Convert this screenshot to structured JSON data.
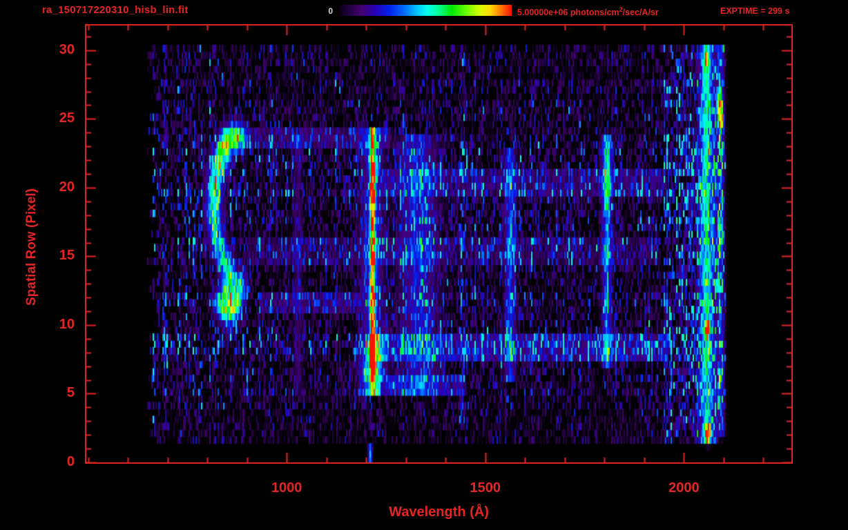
{
  "header": {
    "filename": "ra_150717220310_hisb_lin.fit",
    "exptime_label": "EXPTIME = 299 s",
    "colorbar": {
      "min_label": "0",
      "max_label_prefix": "5.00000e+06 photons/cm",
      "max_label_sup": "2",
      "max_label_suffix": "/sec/A/sr"
    }
  },
  "colors": {
    "axis_text": "#e62424",
    "colorbar_zero_label": "#d9d9d9",
    "background": "#000000"
  },
  "chart_data": {
    "type": "heatmap",
    "title": "",
    "xlabel": "Wavelength (Å)",
    "ylabel": "Spatial Row (Pixel)",
    "x_range": [
      492,
      2274
    ],
    "y_range": [
      -0.1,
      31.9
    ],
    "x_ticks": [
      {
        "value": 1000,
        "label": "1000"
      },
      {
        "value": 1500,
        "label": "1500"
      },
      {
        "value": 2000,
        "label": "2000"
      }
    ],
    "x_minor_step": 100,
    "y_ticks": [
      {
        "value": 0,
        "label": "0"
      },
      {
        "value": 5,
        "label": "5"
      },
      {
        "value": 10,
        "label": "10"
      },
      {
        "value": 15,
        "label": "15"
      },
      {
        "value": 20,
        "label": "20"
      },
      {
        "value": 25,
        "label": "25"
      },
      {
        "value": 30,
        "label": "30"
      }
    ],
    "y_minor_step": 1,
    "colorbar_range": [
      0,
      5000000
    ],
    "colorbar_units": "photons/cm2/sec/A/sr",
    "data_extent": {
      "wl": [
        648,
        2106
      ],
      "rows": [
        1.4,
        30.5
      ],
      "left_edge_jitter": 32,
      "right_edge_jitter": 6
    },
    "colormap": {
      "name": "rainbow",
      "stops": [
        [
          0.0,
          "#000000"
        ],
        [
          0.06,
          "#1c0038"
        ],
        [
          0.14,
          "#44006e"
        ],
        [
          0.22,
          "#2a00b4"
        ],
        [
          0.3,
          "#0022ee"
        ],
        [
          0.38,
          "#0066ff"
        ],
        [
          0.46,
          "#00c3ff"
        ],
        [
          0.52,
          "#00ffee"
        ],
        [
          0.58,
          "#00ff99"
        ],
        [
          0.66,
          "#00e800"
        ],
        [
          0.74,
          "#66ff00"
        ],
        [
          0.82,
          "#d8ff00"
        ],
        [
          0.88,
          "#ffd800"
        ],
        [
          0.93,
          "#ff8800"
        ],
        [
          1.0,
          "#ff1100"
        ]
      ]
    },
    "background_noise": {
      "amp": 0.3,
      "dropout": 0.2,
      "dropout_factor": 0.08,
      "spark_prob": 0.05,
      "spark_amp": 0.2,
      "cap": 0.55
    },
    "noise_zones": [
      {
        "wl": [
          1950,
          2044
        ],
        "gain": 1.8,
        "speckle_prob": 0.3,
        "speckle_amp": 0.16
      },
      {
        "wl": [
          2070,
          2106
        ],
        "gain": 1.6,
        "speckle_prob": 0.25,
        "speckle_amp": 0.14
      }
    ],
    "row_gain": [
      [
        1.4,
        4,
        0.55
      ],
      [
        4,
        5,
        0.8
      ],
      [
        5,
        7.5,
        1.0
      ],
      [
        7.5,
        9.5,
        1.4
      ],
      [
        9.5,
        14.5,
        1.0
      ],
      [
        14.5,
        16.5,
        1.2
      ],
      [
        16.5,
        19.5,
        1.0
      ],
      [
        19.5,
        21.5,
        1.3
      ],
      [
        21.5,
        24.5,
        1.0
      ],
      [
        24.5,
        26.5,
        0.8
      ],
      [
        26.5,
        30.5,
        0.68
      ]
    ],
    "row_streaks": [
      {
        "rows": [
          7.5,
          9.5
        ],
        "wl": [
          1230,
          1960
        ],
        "amp": 0.15
      },
      {
        "rows": [
          19.5,
          21.2
        ],
        "wl": [
          1240,
          1950
        ],
        "amp": 0.1
      },
      {
        "rows": [
          14.5,
          16.5
        ],
        "wl": [
          900,
          1940
        ],
        "amp": 0.07
      },
      {
        "rows": [
          10.8,
          12.2
        ],
        "wl": [
          930,
          1190
        ],
        "amp": 0.1
      },
      {
        "rows": [
          23.0,
          24.2
        ],
        "wl": [
          830,
          1260
        ],
        "amp": 0.1
      },
      {
        "rows": [
          5.0,
          6.5
        ],
        "wl": [
          1180,
          1450
        ],
        "amp": 0.14
      }
    ],
    "features": [
      {
        "name": "lyman-alpha-core",
        "type": "vline",
        "center": 1216,
        "sigma": 5,
        "profile": [
          [
            5,
            6,
            0.5
          ],
          [
            6,
            9.5,
            0.97
          ],
          [
            9.5,
            13,
            0.8
          ],
          [
            13,
            19,
            0.73
          ],
          [
            19,
            22.5,
            0.92
          ],
          [
            22.5,
            24.3,
            0.6
          ]
        ]
      },
      {
        "name": "lyman-alpha-wings",
        "type": "vline",
        "center": 1216,
        "sigma": 19,
        "profile": [
          [
            5,
            24.3,
            0.22
          ],
          [
            6.5,
            9.5,
            0.3
          ]
        ]
      },
      {
        "name": "lyman-beta-line",
        "type": "vline",
        "center": 1028,
        "sigma": 8,
        "profile": [
          [
            5,
            24,
            0.1
          ]
        ]
      },
      {
        "name": "emission-band-1330",
        "type": "vline",
        "center": 1332,
        "sigma": 32,
        "profile": [
          [
            5,
            24,
            0.2
          ]
        ]
      },
      {
        "name": "emission-line-1560",
        "type": "vline",
        "center": 1562,
        "sigma": 9,
        "profile": [
          [
            6,
            23,
            0.26
          ]
        ]
      },
      {
        "name": "emission-line-1805",
        "type": "vline",
        "center": 1806,
        "sigma": 8,
        "profile": [
          [
            7,
            18,
            0.32
          ],
          [
            18,
            23.8,
            0.5
          ]
        ]
      },
      {
        "name": "airglow-band-2057",
        "type": "vline",
        "center": 2057,
        "sigma": 12,
        "profile": [
          [
            1.5,
            30.5,
            0.5
          ]
        ]
      },
      {
        "name": "edge-band-2092",
        "type": "vline",
        "center": 2092,
        "sigma": 7,
        "profile": [
          [
            2,
            30.5,
            0.22
          ]
        ]
      },
      {
        "name": "bottom-spike-1210",
        "type": "vline",
        "center": 1210,
        "sigma": 3.5,
        "profile": [
          [
            -0.1,
            1.4,
            0.4
          ]
        ]
      },
      {
        "name": "airglow-arc",
        "type": "path",
        "sigma_wl": 13,
        "sigma_row": 0.75,
        "points": [
          [
            875,
            23.8,
            0.55
          ],
          [
            850,
            23.3,
            0.7
          ],
          [
            828,
            21.8,
            0.65
          ],
          [
            818,
            20.0,
            0.58
          ],
          [
            816,
            18.3,
            0.5
          ],
          [
            822,
            16.6,
            0.45
          ],
          [
            834,
            15.3,
            0.45
          ],
          [
            848,
            14.3,
            0.5
          ],
          [
            858,
            13.4,
            0.55
          ],
          [
            850,
            12.3,
            0.62
          ],
          [
            838,
            11.5,
            0.58
          ],
          [
            854,
            11.1,
            0.7
          ],
          [
            868,
            11.7,
            0.72
          ],
          [
            878,
            12.8,
            0.58
          ]
        ]
      }
    ],
    "hot_spots": [
      {
        "wl": 2060,
        "row": 2.2,
        "amp": 0.9
      },
      {
        "wl": 2058,
        "row": 9.7,
        "amp": 0.8
      },
      {
        "wl": 2090,
        "row": 26.2,
        "amp": 0.85
      },
      {
        "wl": 2093,
        "row": 24.8,
        "amp": 0.6
      },
      {
        "wl": 2056,
        "row": 29.3,
        "amp": 0.6
      }
    ],
    "hot_spot_sigma": {
      "wl": 4,
      "row": 0.45
    }
  }
}
